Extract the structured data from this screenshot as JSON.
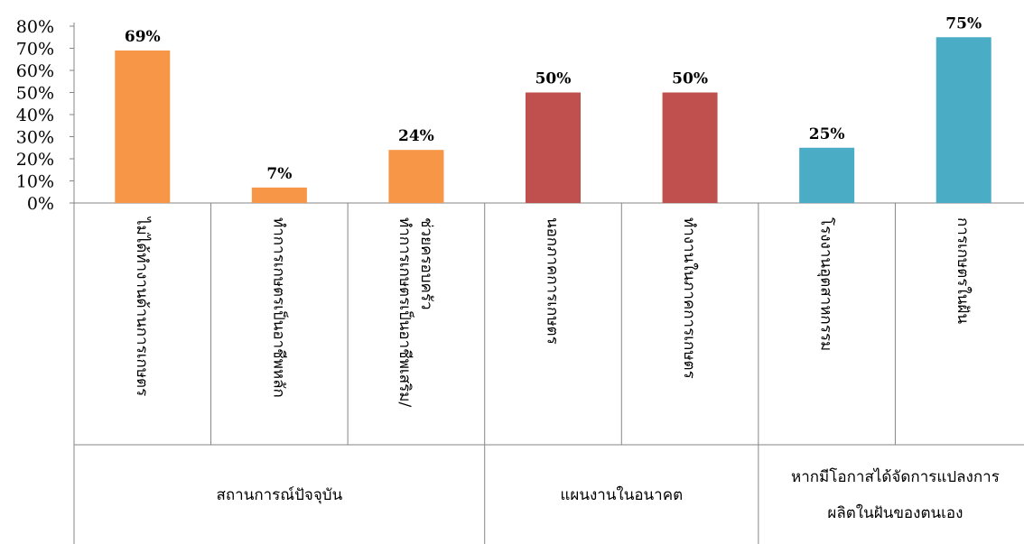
{
  "chart_data": {
    "type": "bar",
    "categories": [
      "ไม่ได้ทำงานด้านการเกษตร",
      "ทำการเกษตรเป็นอาชีพหลัก",
      [
        "ทำการเกษตรเป็นอาชีพเสริม/",
        "ช่วยครอบครัว"
      ],
      "นอกภาคการเกษตร",
      "ทำงานในภาคการเกษตร",
      "โรงงานอุตสาหกรรม",
      "การเกษตรในฝัน"
    ],
    "values": [
      69,
      7,
      24,
      50,
      50,
      25,
      75
    ],
    "data_labels": [
      "69%",
      "7%",
      "24%",
      "50%",
      "50%",
      "25%",
      "75%"
    ],
    "groups": [
      {
        "label": [
          "สถานการณ์ปัจจุบัน"
        ],
        "count": 3,
        "color": "#F79646"
      },
      {
        "label": [
          "แผนงานในอนาคต"
        ],
        "count": 2,
        "color": "#C0504D"
      },
      {
        "label": [
          "หากมีโอกาสได้จัดการแปลงการ",
          "ผลิตในฝันของตนเอง"
        ],
        "count": 2,
        "color": "#4BACC6"
      }
    ],
    "y_ticks": [
      "0%",
      "10%",
      "20%",
      "30%",
      "40%",
      "50%",
      "60%",
      "70%",
      "80%"
    ],
    "ylim": [
      0,
      80
    ],
    "grid": false,
    "legend": "none",
    "title": "",
    "xlabel": "",
    "ylabel": ""
  }
}
